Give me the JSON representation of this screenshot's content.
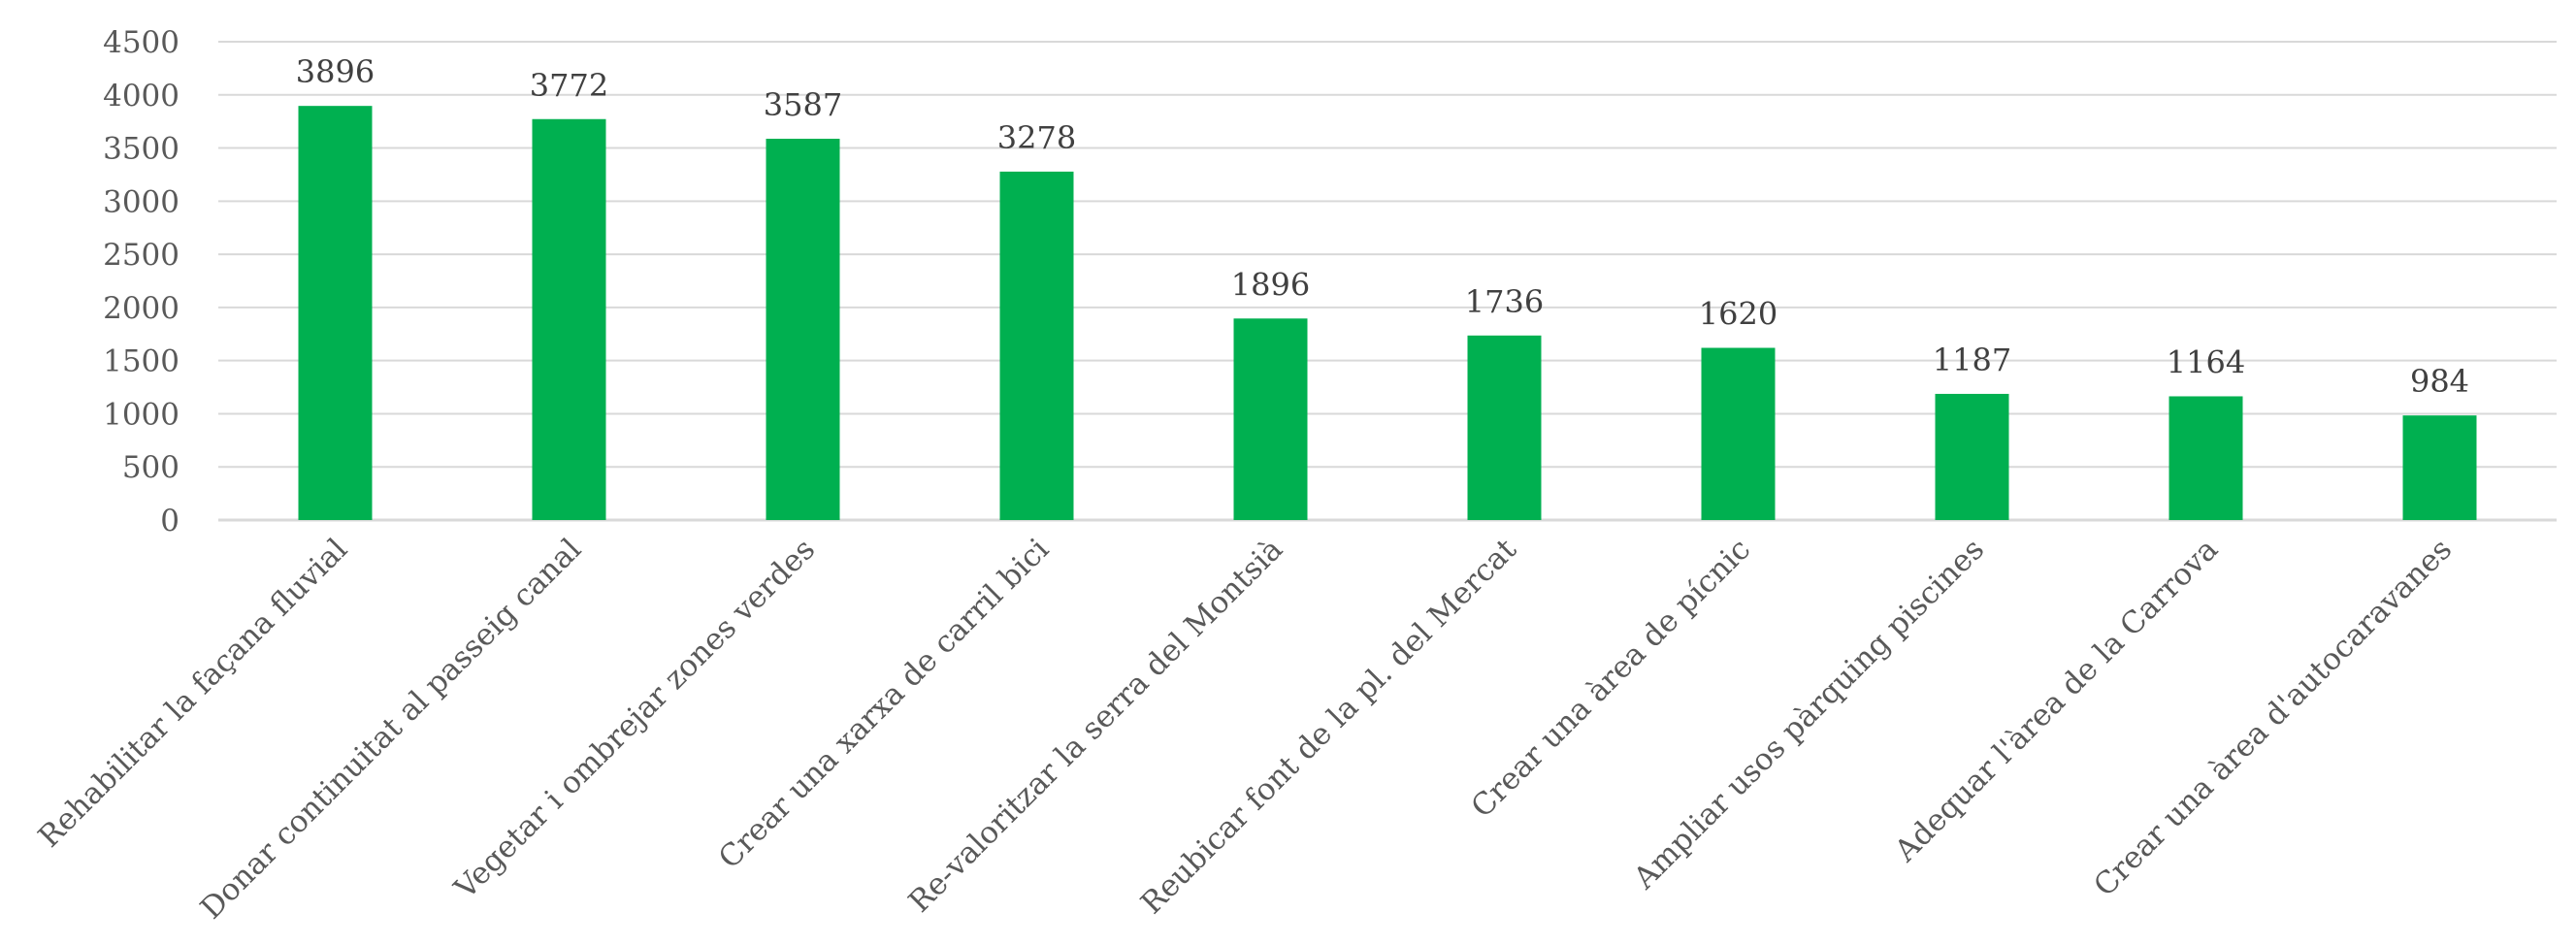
{
  "chart_data": {
    "type": "bar",
    "categories": [
      "Rehabilitar la façana fluvial",
      "Donar continuitat al passeig canal",
      "Vegetar i ombrejar zones verdes",
      "Crear una xarxa de carril bici",
      "Re-valoritzar la serra del Montsià",
      "Reubicar font de la pl. del Mercat",
      "Crear una àrea de pícnic",
      "Ampliar usos pàrquing piscines",
      "Adequar l'àrea de la Carrova",
      "Crear una àrea d'autocaravanes"
    ],
    "values": [
      3896,
      3772,
      3587,
      3278,
      1896,
      1736,
      1620,
      1187,
      1164,
      984
    ],
    "data_labels": [
      "3896",
      "3772",
      "3587",
      "3278",
      "1896",
      "1736",
      "1620",
      "1187",
      "1164",
      "984"
    ],
    "yticks": [
      "0",
      "500",
      "1000",
      "1500",
      "2000",
      "2500",
      "3000",
      "3500",
      "4000",
      "4500"
    ],
    "ylim": [
      0,
      4500
    ],
    "grid": true,
    "legend": "none",
    "title": "",
    "xlabel": "",
    "ylabel": "",
    "colors": {
      "bar": "#00b050",
      "grid": "#d9d9d9",
      "tick_text": "#595959",
      "label_text": "#404040"
    }
  }
}
